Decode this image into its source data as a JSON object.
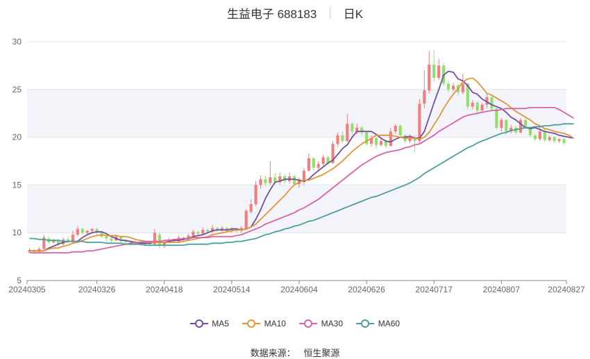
{
  "header": {
    "title": "生益电子 688183",
    "period": "日K"
  },
  "source": {
    "label": "数据来源：",
    "value": "恒生聚源"
  },
  "colors": {
    "up": "#ef7f7f",
    "down": "#8fe06a",
    "ma5": "#6f4ea1",
    "ma10": "#e3943b",
    "ma30": "#d962a8",
    "ma60": "#4a9e9c",
    "band": "#f3f4fa",
    "grid": "#e4e4e4"
  },
  "chart_data": {
    "type": "candlestick",
    "title": "生益电子 688183",
    "period": "日K",
    "y_axis": {
      "min": 5,
      "max": 30,
      "ticks": [
        5,
        10,
        15,
        20,
        25,
        30
      ]
    },
    "x_tick_labels": [
      "20240305",
      "20240326",
      "20240418",
      "20240514",
      "20240604",
      "20240626",
      "20240717",
      "20240807",
      "20240827"
    ],
    "x_tick_index": [
      0,
      14,
      28,
      42,
      56,
      70,
      84,
      98,
      111
    ],
    "legend_position": "bottom",
    "legend": [
      "MA5",
      "MA10",
      "MA30",
      "MA60"
    ],
    "candles": [
      {
        "o": 8.0,
        "c": 8.2,
        "h": 8.4,
        "l": 7.9
      },
      {
        "o": 8.2,
        "c": 8.0,
        "h": 8.3,
        "l": 7.9
      },
      {
        "o": 8.0,
        "c": 8.3,
        "h": 8.5,
        "l": 7.9
      },
      {
        "o": 8.3,
        "c": 9.5,
        "h": 9.8,
        "l": 8.2
      },
      {
        "o": 9.4,
        "c": 9.0,
        "h": 9.6,
        "l": 8.8
      },
      {
        "o": 9.0,
        "c": 9.2,
        "h": 9.4,
        "l": 8.9
      },
      {
        "o": 9.2,
        "c": 8.8,
        "h": 9.4,
        "l": 8.6
      },
      {
        "o": 8.8,
        "c": 9.3,
        "h": 9.5,
        "l": 8.7
      },
      {
        "o": 9.3,
        "c": 9.0,
        "h": 9.6,
        "l": 8.9
      },
      {
        "o": 9.0,
        "c": 9.8,
        "h": 10.2,
        "l": 8.9
      },
      {
        "o": 9.8,
        "c": 10.4,
        "h": 10.7,
        "l": 9.6
      },
      {
        "o": 10.4,
        "c": 10.0,
        "h": 10.5,
        "l": 9.8
      },
      {
        "o": 10.0,
        "c": 10.2,
        "h": 10.3,
        "l": 9.8
      },
      {
        "o": 10.2,
        "c": 10.4,
        "h": 10.5,
        "l": 10.0
      },
      {
        "o": 10.4,
        "c": 10.0,
        "h": 10.5,
        "l": 9.8
      },
      {
        "o": 10.0,
        "c": 9.6,
        "h": 10.1,
        "l": 9.5
      },
      {
        "o": 9.6,
        "c": 9.4,
        "h": 9.7,
        "l": 9.1
      },
      {
        "o": 9.4,
        "c": 9.2,
        "h": 9.5,
        "l": 9.0
      },
      {
        "o": 9.2,
        "c": 9.6,
        "h": 9.8,
        "l": 9.1
      },
      {
        "o": 9.6,
        "c": 9.2,
        "h": 9.7,
        "l": 9.0
      },
      {
        "o": 9.2,
        "c": 9.0,
        "h": 9.3,
        "l": 8.8
      },
      {
        "o": 9.0,
        "c": 8.8,
        "h": 9.1,
        "l": 8.6
      },
      {
        "o": 8.8,
        "c": 9.0,
        "h": 9.2,
        "l": 8.7
      },
      {
        "o": 9.0,
        "c": 8.8,
        "h": 9.1,
        "l": 8.6
      },
      {
        "o": 8.8,
        "c": 9.0,
        "h": 9.2,
        "l": 8.7
      },
      {
        "o": 9.0,
        "c": 8.8,
        "h": 9.1,
        "l": 8.5
      },
      {
        "o": 8.8,
        "c": 10.0,
        "h": 10.4,
        "l": 8.7
      },
      {
        "o": 9.8,
        "c": 8.6,
        "h": 10.0,
        "l": 8.4
      },
      {
        "o": 8.6,
        "c": 9.0,
        "h": 9.2,
        "l": 8.4
      },
      {
        "o": 9.0,
        "c": 9.3,
        "h": 9.5,
        "l": 8.9
      },
      {
        "o": 9.3,
        "c": 9.1,
        "h": 9.4,
        "l": 8.9
      },
      {
        "o": 9.1,
        "c": 9.5,
        "h": 9.7,
        "l": 9.0
      },
      {
        "o": 9.5,
        "c": 9.3,
        "h": 9.6,
        "l": 9.1
      },
      {
        "o": 9.3,
        "c": 9.7,
        "h": 9.9,
        "l": 9.2
      },
      {
        "o": 9.7,
        "c": 10.1,
        "h": 10.3,
        "l": 9.5
      },
      {
        "o": 10.1,
        "c": 9.9,
        "h": 10.2,
        "l": 9.7
      },
      {
        "o": 9.9,
        "c": 10.3,
        "h": 10.6,
        "l": 9.8
      },
      {
        "o": 10.3,
        "c": 10.1,
        "h": 10.5,
        "l": 9.9
      },
      {
        "o": 10.1,
        "c": 10.5,
        "h": 10.8,
        "l": 10.0
      },
      {
        "o": 10.5,
        "c": 10.3,
        "h": 10.6,
        "l": 10.1
      },
      {
        "o": 10.3,
        "c": 10.5,
        "h": 10.7,
        "l": 10.1
      },
      {
        "o": 10.5,
        "c": 10.2,
        "h": 10.6,
        "l": 10.0
      },
      {
        "o": 10.2,
        "c": 10.4,
        "h": 10.6,
        "l": 10.0
      },
      {
        "o": 10.4,
        "c": 10.2,
        "h": 10.5,
        "l": 10.0
      },
      {
        "o": 10.2,
        "c": 10.5,
        "h": 10.7,
        "l": 10.0
      },
      {
        "o": 10.4,
        "c": 12.3,
        "h": 12.5,
        "l": 10.3
      },
      {
        "o": 12.2,
        "c": 13.0,
        "h": 13.5,
        "l": 12.0
      },
      {
        "o": 13.0,
        "c": 15.0,
        "h": 15.4,
        "l": 12.8
      },
      {
        "o": 15.0,
        "c": 15.6,
        "h": 16.0,
        "l": 14.6
      },
      {
        "o": 15.6,
        "c": 15.2,
        "h": 16.0,
        "l": 14.9
      },
      {
        "o": 15.2,
        "c": 15.8,
        "h": 17.5,
        "l": 15.0
      },
      {
        "o": 15.8,
        "c": 15.3,
        "h": 16.2,
        "l": 15.0
      },
      {
        "o": 15.3,
        "c": 15.9,
        "h": 16.3,
        "l": 15.0
      },
      {
        "o": 15.9,
        "c": 15.4,
        "h": 16.1,
        "l": 15.1
      },
      {
        "o": 15.4,
        "c": 15.9,
        "h": 16.3,
        "l": 15.1
      },
      {
        "o": 15.9,
        "c": 15.1,
        "h": 16.1,
        "l": 14.9
      },
      {
        "o": 15.1,
        "c": 15.5,
        "h": 15.8,
        "l": 14.7
      },
      {
        "o": 15.3,
        "c": 16.5,
        "h": 16.8,
        "l": 15.0
      },
      {
        "o": 16.5,
        "c": 17.8,
        "h": 18.3,
        "l": 16.4
      },
      {
        "o": 17.8,
        "c": 16.8,
        "h": 17.9,
        "l": 16.5
      },
      {
        "o": 16.8,
        "c": 17.2,
        "h": 17.5,
        "l": 16.6
      },
      {
        "o": 17.2,
        "c": 17.9,
        "h": 18.2,
        "l": 17.0
      },
      {
        "o": 17.9,
        "c": 17.3,
        "h": 18.0,
        "l": 17.1
      },
      {
        "o": 17.3,
        "c": 19.3,
        "h": 19.6,
        "l": 17.2
      },
      {
        "o": 19.3,
        "c": 20.2,
        "h": 20.5,
        "l": 19.0
      },
      {
        "o": 20.2,
        "c": 19.6,
        "h": 20.6,
        "l": 19.4
      },
      {
        "o": 19.6,
        "c": 21.4,
        "h": 22.4,
        "l": 19.5
      },
      {
        "o": 21.4,
        "c": 20.6,
        "h": 21.6,
        "l": 20.3
      },
      {
        "o": 20.6,
        "c": 21.0,
        "h": 21.4,
        "l": 20.3
      },
      {
        "o": 21.0,
        "c": 20.5,
        "h": 21.2,
        "l": 20.2
      },
      {
        "o": 20.5,
        "c": 19.3,
        "h": 20.6,
        "l": 19.1
      },
      {
        "o": 19.3,
        "c": 19.9,
        "h": 20.2,
        "l": 19.0
      },
      {
        "o": 19.9,
        "c": 19.2,
        "h": 20.0,
        "l": 18.8
      },
      {
        "o": 19.2,
        "c": 19.6,
        "h": 19.8,
        "l": 19.0
      },
      {
        "o": 19.6,
        "c": 19.1,
        "h": 19.7,
        "l": 18.9
      },
      {
        "o": 19.1,
        "c": 20.6,
        "h": 21.0,
        "l": 19.0
      },
      {
        "o": 20.6,
        "c": 21.2,
        "h": 21.4,
        "l": 20.3
      },
      {
        "o": 21.2,
        "c": 20.2,
        "h": 21.3,
        "l": 20.0
      },
      {
        "o": 20.2,
        "c": 19.6,
        "h": 20.3,
        "l": 19.4
      },
      {
        "o": 19.6,
        "c": 20.0,
        "h": 20.3,
        "l": 19.4
      },
      {
        "o": 20.0,
        "c": 19.6,
        "h": 20.2,
        "l": 18.4
      },
      {
        "o": 19.6,
        "c": 23.5,
        "h": 24.0,
        "l": 19.4
      },
      {
        "o": 23.5,
        "c": 24.9,
        "h": 27.0,
        "l": 23.0
      },
      {
        "o": 24.9,
        "c": 27.6,
        "h": 29.0,
        "l": 24.6
      },
      {
        "o": 27.6,
        "c": 26.2,
        "h": 29.1,
        "l": 25.8
      },
      {
        "o": 26.2,
        "c": 27.5,
        "h": 28.2,
        "l": 26.0
      },
      {
        "o": 27.5,
        "c": 25.6,
        "h": 27.8,
        "l": 25.3
      },
      {
        "o": 25.6,
        "c": 25.0,
        "h": 25.9,
        "l": 24.7
      },
      {
        "o": 25.0,
        "c": 25.4,
        "h": 25.7,
        "l": 24.8
      },
      {
        "o": 25.4,
        "c": 24.7,
        "h": 25.6,
        "l": 24.4
      },
      {
        "o": 24.7,
        "c": 25.6,
        "h": 26.6,
        "l": 24.5
      },
      {
        "o": 25.6,
        "c": 23.2,
        "h": 25.7,
        "l": 22.9
      },
      {
        "o": 23.2,
        "c": 23.6,
        "h": 23.9,
        "l": 22.9
      },
      {
        "o": 23.6,
        "c": 22.8,
        "h": 23.8,
        "l": 22.5
      },
      {
        "o": 22.8,
        "c": 23.4,
        "h": 23.6,
        "l": 22.6
      },
      {
        "o": 23.4,
        "c": 24.2,
        "h": 24.6,
        "l": 23.0
      },
      {
        "o": 24.2,
        "c": 23.0,
        "h": 24.3,
        "l": 22.7
      },
      {
        "o": 23.0,
        "c": 21.0,
        "h": 23.1,
        "l": 20.8
      },
      {
        "o": 21.0,
        "c": 21.8,
        "h": 22.0,
        "l": 20.6
      },
      {
        "o": 21.8,
        "c": 20.6,
        "h": 21.9,
        "l": 20.3
      },
      {
        "o": 20.6,
        "c": 21.0,
        "h": 21.3,
        "l": 20.4
      },
      {
        "o": 21.0,
        "c": 20.5,
        "h": 21.2,
        "l": 20.3
      },
      {
        "o": 20.5,
        "c": 21.8,
        "h": 22.0,
        "l": 20.4
      },
      {
        "o": 21.8,
        "c": 21.0,
        "h": 22.0,
        "l": 20.8
      },
      {
        "o": 21.0,
        "c": 20.2,
        "h": 21.1,
        "l": 20.0
      },
      {
        "o": 20.2,
        "c": 19.8,
        "h": 20.3,
        "l": 19.6
      },
      {
        "o": 19.8,
        "c": 20.6,
        "h": 21.2,
        "l": 19.6
      },
      {
        "o": 20.6,
        "c": 19.7,
        "h": 21.0,
        "l": 19.5
      },
      {
        "o": 19.7,
        "c": 20.0,
        "h": 20.2,
        "l": 19.5
      },
      {
        "o": 20.0,
        "c": 19.6,
        "h": 20.1,
        "l": 19.4
      },
      {
        "o": 19.6,
        "c": 19.8,
        "h": 19.9,
        "l": 19.4
      },
      {
        "o": 19.8,
        "c": 19.4,
        "h": 19.9,
        "l": 19.2
      }
    ],
    "series": [
      {
        "name": "MA5",
        "values": [
          8.1,
          8.1,
          8.1,
          8.1,
          8.4,
          8.6,
          8.8,
          9.0,
          9.1,
          9.1,
          9.1,
          9.5,
          9.8,
          10.0,
          10.1,
          10.1,
          9.9,
          9.6,
          9.4,
          9.2,
          9.2,
          9.1,
          9.0,
          8.9,
          8.9,
          8.9,
          9.0,
          9.0,
          9.0,
          9.1,
          9.2,
          9.2,
          9.3,
          9.4,
          9.6,
          9.7,
          9.8,
          10.0,
          10.2,
          10.3,
          10.3,
          10.3,
          10.4,
          10.4,
          10.3,
          10.4,
          10.6,
          11.4,
          12.4,
          13.6,
          14.5,
          15.3,
          15.4,
          15.6,
          15.6,
          15.6,
          15.5,
          15.4,
          15.6,
          16.1,
          16.5,
          16.9,
          17.3,
          17.6,
          18.2,
          18.8,
          19.2,
          20.0,
          20.6,
          20.6,
          20.6,
          20.6,
          20.3,
          19.9,
          19.6,
          19.5,
          19.8,
          20.0,
          20.0,
          20.1,
          19.9,
          19.9,
          20.6,
          22.1,
          23.6,
          25.0,
          26.5,
          26.9,
          26.8,
          26.1,
          25.9,
          25.4,
          24.7,
          24.5,
          24.0,
          23.7,
          23.4,
          23.2,
          23.0,
          22.6,
          22.1,
          21.8,
          21.4,
          21.0,
          20.9,
          21.0,
          20.8,
          20.6,
          20.5,
          20.4,
          20.2,
          20.1,
          20.0,
          19.9
        ]
      },
      {
        "name": "MA10",
        "values": [
          8.1,
          8.1,
          8.1,
          8.1,
          8.3,
          8.4,
          8.4,
          8.6,
          8.7,
          8.9,
          9.0,
          9.2,
          9.4,
          9.6,
          9.7,
          9.8,
          9.7,
          9.7,
          9.7,
          9.6,
          9.6,
          9.5,
          9.3,
          9.2,
          9.1,
          9.0,
          9.0,
          9.0,
          9.0,
          9.0,
          9.0,
          9.0,
          9.1,
          9.2,
          9.3,
          9.4,
          9.5,
          9.6,
          9.8,
          9.9,
          10.0,
          10.1,
          10.2,
          10.3,
          10.3,
          10.4,
          10.6,
          10.9,
          11.4,
          11.9,
          12.4,
          12.9,
          13.4,
          13.9,
          14.5,
          15.0,
          15.3,
          15.5,
          15.5,
          15.7,
          15.9,
          16.1,
          16.4,
          16.7,
          17.1,
          17.5,
          18.0,
          18.5,
          18.9,
          19.3,
          19.6,
          19.9,
          20.2,
          20.2,
          20.2,
          20.2,
          20.1,
          20.0,
          19.9,
          19.9,
          19.9,
          19.8,
          20.0,
          20.5,
          21.3,
          22.1,
          23.0,
          23.8,
          24.5,
          25.1,
          25.8,
          26.1,
          26.2,
          25.8,
          25.2,
          24.6,
          24.4,
          24.1,
          23.8,
          23.5,
          23.1,
          22.7,
          22.4,
          22.1,
          21.8,
          21.4,
          21.2,
          20.9,
          20.8,
          20.6,
          20.5,
          20.4,
          20.2,
          19.9
        ]
      },
      {
        "name": "MA30",
        "values": [
          7.9,
          7.9,
          7.9,
          7.9,
          7.9,
          7.9,
          7.9,
          7.9,
          7.9,
          8.0,
          8.0,
          8.0,
          8.1,
          8.1,
          8.2,
          8.3,
          8.4,
          8.5,
          8.6,
          8.7,
          8.8,
          8.9,
          9.0,
          9.0,
          9.1,
          9.1,
          9.1,
          9.1,
          9.2,
          9.2,
          9.3,
          9.3,
          9.4,
          9.4,
          9.5,
          9.5,
          9.5,
          9.5,
          9.6,
          9.6,
          9.6,
          9.6,
          9.6,
          9.7,
          9.8,
          10.0,
          10.2,
          10.4,
          10.6,
          10.9,
          11.1,
          11.3,
          11.5,
          11.7,
          11.9,
          12.1,
          12.4,
          12.6,
          12.9,
          13.2,
          13.5,
          13.9,
          14.3,
          14.7,
          15.1,
          15.5,
          15.9,
          16.3,
          16.7,
          17.1,
          17.4,
          17.7,
          18.0,
          18.2,
          18.4,
          18.5,
          18.6,
          18.7,
          18.9,
          19.0,
          19.2,
          19.3,
          19.6,
          19.9,
          20.2,
          20.6,
          20.9,
          21.2,
          21.5,
          21.8,
          22.1,
          22.3,
          22.4,
          22.5,
          22.6,
          22.7,
          22.8,
          22.8,
          22.9,
          23.0,
          23.0,
          23.0,
          23.0,
          23.0,
          23.1,
          23.1,
          23.1,
          23.1,
          23.1,
          23.1,
          22.9,
          22.6,
          22.3,
          22.0
        ]
      },
      {
        "name": "MA60",
        "values": [
          9.4,
          9.4,
          9.3,
          9.3,
          9.2,
          9.2,
          9.2,
          9.1,
          9.1,
          9.1,
          9.1,
          9.1,
          9.0,
          9.0,
          9.0,
          9.0,
          8.9,
          8.9,
          8.9,
          8.9,
          8.8,
          8.8,
          8.8,
          8.8,
          8.7,
          8.7,
          8.7,
          8.7,
          8.7,
          8.7,
          8.7,
          8.7,
          8.7,
          8.8,
          8.8,
          8.8,
          8.8,
          8.8,
          8.9,
          8.9,
          8.9,
          9.0,
          9.0,
          9.1,
          9.1,
          9.2,
          9.3,
          9.4,
          9.6,
          9.8,
          9.9,
          10.1,
          10.2,
          10.4,
          10.5,
          10.7,
          10.8,
          11.0,
          11.2,
          11.3,
          11.5,
          11.7,
          11.9,
          12.1,
          12.3,
          12.5,
          12.7,
          12.9,
          13.1,
          13.3,
          13.5,
          13.7,
          13.8,
          14.0,
          14.2,
          14.4,
          14.6,
          14.8,
          15.0,
          15.2,
          15.5,
          15.8,
          16.2,
          16.5,
          16.8,
          17.1,
          17.4,
          17.7,
          18.0,
          18.3,
          18.6,
          18.9,
          19.1,
          19.4,
          19.6,
          19.8,
          20.0,
          20.2,
          20.4,
          20.5,
          20.7,
          20.8,
          20.9,
          21.0,
          21.0,
          21.1,
          21.1,
          21.2,
          21.2,
          21.3,
          21.3,
          21.4,
          21.4,
          21.4
        ]
      }
    ]
  }
}
